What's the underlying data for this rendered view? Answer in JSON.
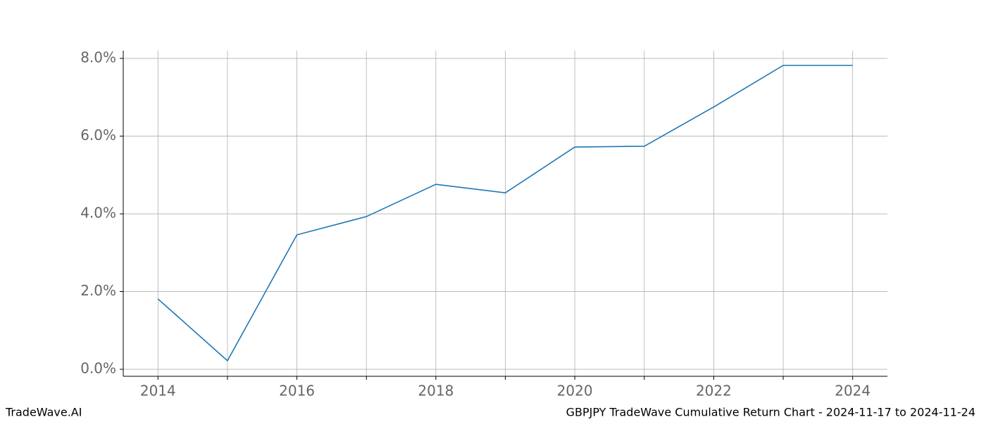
{
  "chart_data": {
    "type": "line",
    "x": [
      2014,
      2015,
      2016,
      2017,
      2018,
      2019,
      2020,
      2021,
      2022,
      2023,
      2024
    ],
    "series": [
      {
        "color": "#1f77b4",
        "values": [
          1.81,
          0.22,
          3.46,
          3.93,
          4.76,
          4.54,
          5.72,
          5.74,
          6.75,
          7.82,
          7.82
        ]
      }
    ],
    "xlim": [
      2013.5,
      2024.5
    ],
    "xticks": [
      2014,
      2016,
      2018,
      2020,
      2022,
      2024
    ],
    "x_minor_ticks": [
      2015,
      2017,
      2019,
      2021,
      2023
    ],
    "ylim": [
      -0.18,
      8.2
    ],
    "yticks": [
      {
        "value": 0,
        "label": "0.0%"
      },
      {
        "value": 2,
        "label": "2.0%"
      },
      {
        "value": 4,
        "label": "4.0%"
      },
      {
        "value": 6,
        "label": "6.0%"
      },
      {
        "value": 8,
        "label": "8.0%"
      }
    ],
    "grid": true
  },
  "footer": {
    "left": "TradeWave.AI",
    "right": "GBPJPY TradeWave Cumulative Return Chart - 2024-11-17 to 2024-11-24"
  }
}
